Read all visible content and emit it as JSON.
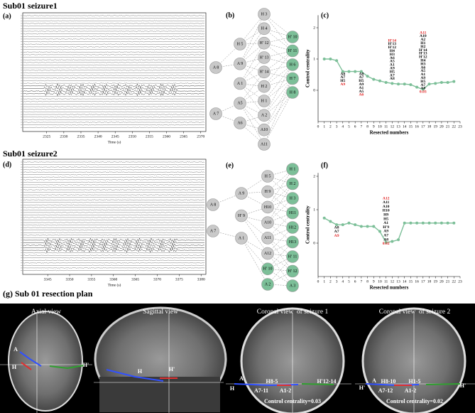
{
  "seizure1": {
    "title": "Sub01 seizure1",
    "eeg": {
      "label": "(a)",
      "x_label": "Time (s)",
      "xlim": [
        2318,
        2371.5
      ],
      "xticks": [
        2325,
        2330,
        2335,
        2340,
        2345,
        2350,
        2355,
        2360,
        2365,
        2370
      ]
    },
    "graph": {
      "label": "(b)",
      "columns": [
        [
          {
            "label": "A 8",
            "fill": "#c9c9c9"
          },
          {
            "label": "A 7",
            "fill": "#c9c9c9"
          }
        ],
        [
          {
            "label": "H 5",
            "fill": "#c9c9c9"
          },
          {
            "label": "A 9",
            "fill": "#c9c9c9"
          },
          {
            "label": "A 1",
            "fill": "#c9c9c9"
          },
          {
            "label": "A5",
            "fill": "#c9c9c9"
          },
          {
            "label": "A6",
            "fill": "#c9c9c9"
          }
        ],
        [
          {
            "label": "H 3",
            "fill": "#c9c9c9"
          },
          {
            "label": "H 4",
            "fill": "#c9c9c9"
          },
          {
            "label": "H' 12",
            "fill": "#c9c9c9"
          },
          {
            "label": "H' 13",
            "fill": "#c9c9c9"
          },
          {
            "label": "H' 14",
            "fill": "#c9c9c9"
          },
          {
            "label": "H 2",
            "fill": "#c9c9c9"
          },
          {
            "label": "H 1",
            "fill": "#c9c9c9"
          },
          {
            "label": "A 2",
            "fill": "#c9c9c9"
          },
          {
            "label": "A10",
            "fill": "#c9c9c9"
          },
          {
            "label": "A11",
            "fill": "#c9c9c9"
          }
        ],
        [
          {
            "label": "H' 10",
            "fill": "#7cbf98"
          },
          {
            "label": "H' 11",
            "fill": "#7cbf98"
          },
          {
            "label": "H 6",
            "fill": "#7cbf98"
          },
          {
            "label": "H 7",
            "fill": "#7cbf98"
          },
          {
            "label": "H 8",
            "fill": "#7cbf98"
          }
        ]
      ]
    }
  },
  "seizure2": {
    "title": "Sub01 seizure2",
    "eeg": {
      "label": "(d)",
      "x_label": "Time (s)",
      "xlim": [
        3339.3,
        3381.1
      ],
      "xticks": [
        3345,
        3350,
        3355,
        3360,
        3365,
        3370,
        3375,
        3380
      ]
    },
    "graph": {
      "label": "(e)",
      "columns": [
        [
          {
            "label": "A 8",
            "fill": "#c9c9c9"
          },
          {
            "label": "A 7",
            "fill": "#c9c9c9"
          }
        ],
        [
          {
            "label": "A 9",
            "fill": "#c9c9c9"
          },
          {
            "label": "H' 9",
            "fill": "#c9c9c9"
          },
          {
            "label": "A 1",
            "fill": "#c9c9c9"
          }
        ],
        [
          {
            "label": "H 5",
            "fill": "#c9c9c9"
          },
          {
            "label": "H 9",
            "fill": "#c9c9c9"
          },
          {
            "label": "H10",
            "fill": "#c9c9c9"
          },
          {
            "label": "A10",
            "fill": "#c9c9c9"
          },
          {
            "label": "A11",
            "fill": "#c9c9c9"
          },
          {
            "label": "A12",
            "fill": "#c9c9c9"
          },
          {
            "label": "H' 10",
            "fill": "#7cbf98"
          },
          {
            "label": "A 2",
            "fill": "#7cbf98"
          }
        ],
        [
          {
            "label": "H 1",
            "fill": "#7cbf98"
          },
          {
            "label": "H 2",
            "fill": "#7cbf98"
          },
          {
            "label": "H 3",
            "fill": "#7cbf98"
          },
          {
            "label": "H11",
            "fill": "#7cbf98"
          },
          {
            "label": "H12",
            "fill": "#7cbf98"
          },
          {
            "label": "H13",
            "fill": "#7cbf98"
          },
          {
            "label": "H' 11",
            "fill": "#7cbf98"
          },
          {
            "label": "H' 12",
            "fill": "#7cbf98"
          },
          {
            "label": "A 3",
            "fill": "#7cbf98"
          }
        ]
      ]
    }
  },
  "chart_data": [
    {
      "type": "line",
      "panel_label": "(c)",
      "x_label": "Resected numbers",
      "y_label": "Control centrality",
      "color": "#7cbf98",
      "x": [
        1,
        2,
        3,
        4,
        5,
        6,
        7,
        8,
        9,
        10,
        11,
        12,
        13,
        14,
        15,
        16,
        17,
        18,
        19,
        20,
        21,
        22
      ],
      "values": [
        1.0,
        1.0,
        0.95,
        0.6,
        0.6,
        0.6,
        0.6,
        0.45,
        0.35,
        0.3,
        0.25,
        0.22,
        0.2,
        0.2,
        0.18,
        0.1,
        0.03,
        0.2,
        0.22,
        0.25,
        0.25,
        0.28
      ],
      "xlim": [
        0,
        23
      ],
      "xticks": [
        0,
        1,
        2,
        3,
        4,
        5,
        6,
        7,
        8,
        9,
        10,
        11,
        12,
        13,
        14,
        15,
        16,
        17,
        18,
        19,
        20,
        21,
        22,
        23
      ],
      "ylim": [
        -1,
        2.4
      ],
      "yticks": [
        0,
        1,
        2
      ],
      "annotations": [
        {
          "x": 4,
          "lines": [
            {
              "text": "A8",
              "color": "#000000"
            },
            {
              "text": "A7",
              "color": "#000000"
            },
            {
              "text": "H5",
              "color": "#000000"
            },
            {
              "text": "A9",
              "color": "#e02020"
            }
          ]
        },
        {
          "x": 7,
          "lines": [
            {
              "text": "A8",
              "color": "#000000"
            },
            {
              "text": "A7",
              "color": "#000000"
            },
            {
              "text": "H5",
              "color": "#000000"
            },
            {
              "text": "A9",
              "color": "#000000"
            },
            {
              "text": "A1",
              "color": "#000000"
            },
            {
              "text": "A5",
              "color": "#000000"
            },
            {
              "text": "A6",
              "color": "#e02020"
            }
          ]
        },
        {
          "x": 12,
          "lines": [
            {
              "text": "H'14",
              "color": "#e02020"
            },
            {
              "text": "H'13",
              "color": "#000000"
            },
            {
              "text": "H'12",
              "color": "#000000"
            },
            {
              "text": "H4",
              "color": "#000000"
            },
            {
              "text": "H3",
              "color": "#000000"
            },
            {
              "text": "A6",
              "color": "#000000"
            },
            {
              "text": "A5",
              "color": "#000000"
            },
            {
              "text": "A1",
              "color": "#000000"
            },
            {
              "text": "A9",
              "color": "#000000"
            },
            {
              "text": "H5",
              "color": "#000000"
            },
            {
              "text": "A7",
              "color": "#000000"
            },
            {
              "text": "A8",
              "color": "#000000"
            }
          ]
        },
        {
          "x": 17,
          "lines": [
            {
              "text": "A11",
              "color": "#e02020"
            },
            {
              "text": "A10",
              "color": "#000000"
            },
            {
              "text": "A2",
              "color": "#000000"
            },
            {
              "text": "H1",
              "color": "#000000"
            },
            {
              "text": "H2",
              "color": "#000000"
            },
            {
              "text": "H'14",
              "color": "#000000"
            },
            {
              "text": "H'13",
              "color": "#000000"
            },
            {
              "text": "H'12",
              "color": "#000000"
            },
            {
              "text": "H4",
              "color": "#000000"
            },
            {
              "text": "H3",
              "color": "#000000"
            },
            {
              "text": "A6",
              "color": "#000000"
            },
            {
              "text": "A5",
              "color": "#000000"
            },
            {
              "text": "A1",
              "color": "#000000"
            },
            {
              "text": "A9",
              "color": "#000000"
            },
            {
              "text": "H5",
              "color": "#000000"
            },
            {
              "text": "A7",
              "color": "#000000"
            },
            {
              "text": "A8",
              "color": "#000000"
            },
            {
              "text": "0.03",
              "color": "#e02020"
            }
          ]
        }
      ]
    },
    {
      "type": "line",
      "panel_label": "(f)",
      "x_label": "Resected numbers",
      "y_label": "Control centrality",
      "color": "#7cbf98",
      "x": [
        1,
        2,
        3,
        4,
        5,
        6,
        7,
        8,
        9,
        10,
        11,
        12,
        13,
        14,
        15,
        16,
        17,
        18,
        19,
        20,
        21,
        22
      ],
      "values": [
        0.75,
        0.65,
        0.55,
        0.55,
        0.6,
        0.55,
        0.5,
        0.5,
        0.5,
        0.35,
        0.02,
        0.05,
        0.1,
        0.6,
        0.6,
        0.6,
        0.6,
        0.6,
        0.6,
        0.6,
        0.6,
        0.6
      ],
      "xlim": [
        0,
        23
      ],
      "xticks": [
        0,
        1,
        2,
        3,
        4,
        5,
        6,
        7,
        8,
        9,
        10,
        11,
        12,
        13,
        14,
        15,
        16,
        17,
        18,
        19,
        20,
        21,
        22,
        23
      ],
      "ylim": [
        -1,
        2.1
      ],
      "yticks": [
        0,
        1,
        2
      ],
      "annotations": [
        {
          "x": 3,
          "lines": [
            {
              "text": "A8",
              "color": "#000000"
            },
            {
              "text": "A7",
              "color": "#000000"
            },
            {
              "text": "A9",
              "color": "#e02020"
            }
          ]
        },
        {
          "x": 11,
          "lines": [
            {
              "text": "A12",
              "color": "#e02020"
            },
            {
              "text": "A11",
              "color": "#000000"
            },
            {
              "text": "A10",
              "color": "#000000"
            },
            {
              "text": "H10",
              "color": "#000000"
            },
            {
              "text": "H9",
              "color": "#000000"
            },
            {
              "text": "H5",
              "color": "#000000"
            },
            {
              "text": "A1",
              "color": "#000000"
            },
            {
              "text": "H'9",
              "color": "#000000"
            },
            {
              "text": "A9",
              "color": "#000000"
            },
            {
              "text": "A7",
              "color": "#000000"
            },
            {
              "text": "A8",
              "color": "#000000"
            },
            {
              "text": "0.02",
              "color": "#e02020"
            }
          ]
        }
      ]
    }
  ],
  "resection": {
    "title": "(g) Sub 01 resection plan",
    "views": [
      {
        "title": "Axial view",
        "labels": [
          "A",
          "H",
          "H'"
        ]
      },
      {
        "title": "Sagittal view",
        "labels": [
          "H",
          "H'"
        ]
      },
      {
        "title": "Coronal view  of seizure 1",
        "labels": [
          "A",
          "H",
          "H8-5",
          "H'12-14",
          "A7-11",
          "A1-2",
          "Control centrality=0.03"
        ]
      },
      {
        "title": "Coronal view  of seizure 2",
        "labels": [
          "A",
          "H'",
          "H8-10",
          "H1-5",
          "H'",
          "A7-12",
          "A1-2",
          "Control centrality=0.02"
        ]
      }
    ]
  }
}
